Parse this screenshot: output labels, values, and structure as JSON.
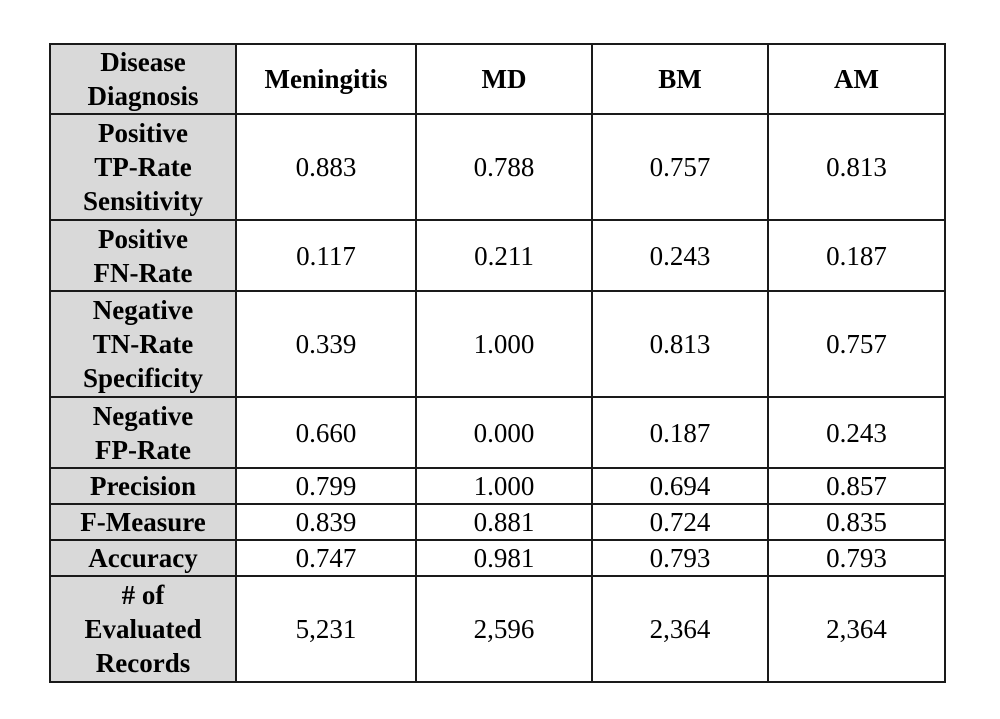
{
  "table": {
    "corner_label_lines": [
      "Disease",
      "Diagnosis"
    ],
    "columns": [
      "Meningitis",
      "MD",
      "BM",
      "AM"
    ],
    "rows": [
      {
        "label_lines": [
          "Positive",
          "TP-Rate",
          "Sensitivity"
        ],
        "values": [
          "0.883",
          "0.788",
          "0.757",
          "0.813"
        ]
      },
      {
        "label_lines": [
          "Positive",
          "FN-Rate"
        ],
        "values": [
          "0.117",
          "0.211",
          "0.243",
          "0.187"
        ]
      },
      {
        "label_lines": [
          "Negative",
          "TN-Rate",
          "Specificity"
        ],
        "values": [
          "0.339",
          "1.000",
          "0.813",
          "0.757"
        ]
      },
      {
        "label_lines": [
          "Negative",
          "FP-Rate"
        ],
        "values": [
          "0.660",
          "0.000",
          "0.187",
          "0.243"
        ]
      },
      {
        "label_lines": [
          "Precision"
        ],
        "values": [
          "0.799",
          "1.000",
          "0.694",
          "0.857"
        ]
      },
      {
        "label_lines": [
          "F-Measure"
        ],
        "values": [
          "0.839",
          "0.881",
          "0.724",
          "0.835"
        ]
      },
      {
        "label_lines": [
          "Accuracy"
        ],
        "values": [
          "0.747",
          "0.981",
          "0.793",
          "0.793"
        ]
      },
      {
        "label_lines": [
          "# of",
          "Evaluated",
          "Records"
        ],
        "values": [
          "5,231",
          "2,596",
          "2,364",
          "2,364"
        ]
      }
    ]
  }
}
